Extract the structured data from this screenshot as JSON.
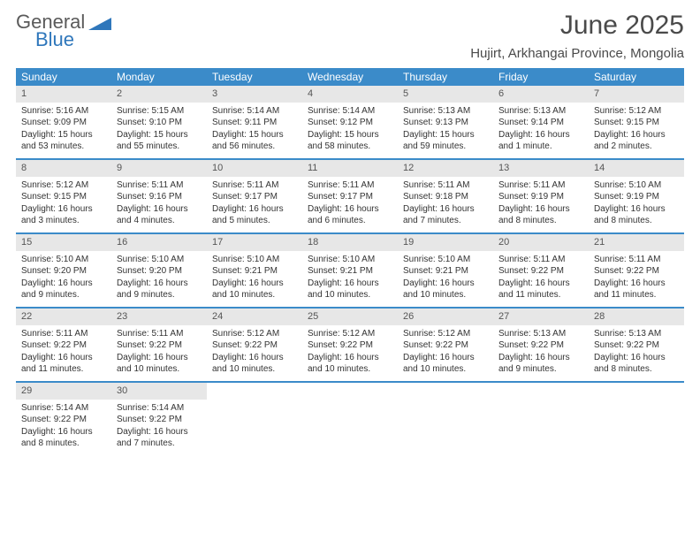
{
  "logo": {
    "general": "General",
    "blue": "Blue"
  },
  "header": {
    "month_title": "June 2025",
    "location": "Hujirt, Arkhangai Province, Mongolia"
  },
  "colors": {
    "header_bg": "#3b8bc9",
    "header_text": "#ffffff",
    "daynum_bg": "#e7e7e7",
    "week_border": "#3b8bc9",
    "body_text": "#333333",
    "title_text": "#4a4a4a",
    "page_bg": "#ffffff"
  },
  "day_names": [
    "Sunday",
    "Monday",
    "Tuesday",
    "Wednesday",
    "Thursday",
    "Friday",
    "Saturday"
  ],
  "weeks": [
    [
      {
        "n": "1",
        "sr": "Sunrise: 5:16 AM",
        "ss": "Sunset: 9:09 PM",
        "dl": "Daylight: 15 hours and 53 minutes."
      },
      {
        "n": "2",
        "sr": "Sunrise: 5:15 AM",
        "ss": "Sunset: 9:10 PM",
        "dl": "Daylight: 15 hours and 55 minutes."
      },
      {
        "n": "3",
        "sr": "Sunrise: 5:14 AM",
        "ss": "Sunset: 9:11 PM",
        "dl": "Daylight: 15 hours and 56 minutes."
      },
      {
        "n": "4",
        "sr": "Sunrise: 5:14 AM",
        "ss": "Sunset: 9:12 PM",
        "dl": "Daylight: 15 hours and 58 minutes."
      },
      {
        "n": "5",
        "sr": "Sunrise: 5:13 AM",
        "ss": "Sunset: 9:13 PM",
        "dl": "Daylight: 15 hours and 59 minutes."
      },
      {
        "n": "6",
        "sr": "Sunrise: 5:13 AM",
        "ss": "Sunset: 9:14 PM",
        "dl": "Daylight: 16 hours and 1 minute."
      },
      {
        "n": "7",
        "sr": "Sunrise: 5:12 AM",
        "ss": "Sunset: 9:15 PM",
        "dl": "Daylight: 16 hours and 2 minutes."
      }
    ],
    [
      {
        "n": "8",
        "sr": "Sunrise: 5:12 AM",
        "ss": "Sunset: 9:15 PM",
        "dl": "Daylight: 16 hours and 3 minutes."
      },
      {
        "n": "9",
        "sr": "Sunrise: 5:11 AM",
        "ss": "Sunset: 9:16 PM",
        "dl": "Daylight: 16 hours and 4 minutes."
      },
      {
        "n": "10",
        "sr": "Sunrise: 5:11 AM",
        "ss": "Sunset: 9:17 PM",
        "dl": "Daylight: 16 hours and 5 minutes."
      },
      {
        "n": "11",
        "sr": "Sunrise: 5:11 AM",
        "ss": "Sunset: 9:17 PM",
        "dl": "Daylight: 16 hours and 6 minutes."
      },
      {
        "n": "12",
        "sr": "Sunrise: 5:11 AM",
        "ss": "Sunset: 9:18 PM",
        "dl": "Daylight: 16 hours and 7 minutes."
      },
      {
        "n": "13",
        "sr": "Sunrise: 5:11 AM",
        "ss": "Sunset: 9:19 PM",
        "dl": "Daylight: 16 hours and 8 minutes."
      },
      {
        "n": "14",
        "sr": "Sunrise: 5:10 AM",
        "ss": "Sunset: 9:19 PM",
        "dl": "Daylight: 16 hours and 8 minutes."
      }
    ],
    [
      {
        "n": "15",
        "sr": "Sunrise: 5:10 AM",
        "ss": "Sunset: 9:20 PM",
        "dl": "Daylight: 16 hours and 9 minutes."
      },
      {
        "n": "16",
        "sr": "Sunrise: 5:10 AM",
        "ss": "Sunset: 9:20 PM",
        "dl": "Daylight: 16 hours and 9 minutes."
      },
      {
        "n": "17",
        "sr": "Sunrise: 5:10 AM",
        "ss": "Sunset: 9:21 PM",
        "dl": "Daylight: 16 hours and 10 minutes."
      },
      {
        "n": "18",
        "sr": "Sunrise: 5:10 AM",
        "ss": "Sunset: 9:21 PM",
        "dl": "Daylight: 16 hours and 10 minutes."
      },
      {
        "n": "19",
        "sr": "Sunrise: 5:10 AM",
        "ss": "Sunset: 9:21 PM",
        "dl": "Daylight: 16 hours and 10 minutes."
      },
      {
        "n": "20",
        "sr": "Sunrise: 5:11 AM",
        "ss": "Sunset: 9:22 PM",
        "dl": "Daylight: 16 hours and 11 minutes."
      },
      {
        "n": "21",
        "sr": "Sunrise: 5:11 AM",
        "ss": "Sunset: 9:22 PM",
        "dl": "Daylight: 16 hours and 11 minutes."
      }
    ],
    [
      {
        "n": "22",
        "sr": "Sunrise: 5:11 AM",
        "ss": "Sunset: 9:22 PM",
        "dl": "Daylight: 16 hours and 11 minutes."
      },
      {
        "n": "23",
        "sr": "Sunrise: 5:11 AM",
        "ss": "Sunset: 9:22 PM",
        "dl": "Daylight: 16 hours and 10 minutes."
      },
      {
        "n": "24",
        "sr": "Sunrise: 5:12 AM",
        "ss": "Sunset: 9:22 PM",
        "dl": "Daylight: 16 hours and 10 minutes."
      },
      {
        "n": "25",
        "sr": "Sunrise: 5:12 AM",
        "ss": "Sunset: 9:22 PM",
        "dl": "Daylight: 16 hours and 10 minutes."
      },
      {
        "n": "26",
        "sr": "Sunrise: 5:12 AM",
        "ss": "Sunset: 9:22 PM",
        "dl": "Daylight: 16 hours and 10 minutes."
      },
      {
        "n": "27",
        "sr": "Sunrise: 5:13 AM",
        "ss": "Sunset: 9:22 PM",
        "dl": "Daylight: 16 hours and 9 minutes."
      },
      {
        "n": "28",
        "sr": "Sunrise: 5:13 AM",
        "ss": "Sunset: 9:22 PM",
        "dl": "Daylight: 16 hours and 8 minutes."
      }
    ],
    [
      {
        "n": "29",
        "sr": "Sunrise: 5:14 AM",
        "ss": "Sunset: 9:22 PM",
        "dl": "Daylight: 16 hours and 8 minutes."
      },
      {
        "n": "30",
        "sr": "Sunrise: 5:14 AM",
        "ss": "Sunset: 9:22 PM",
        "dl": "Daylight: 16 hours and 7 minutes."
      },
      null,
      null,
      null,
      null,
      null
    ]
  ]
}
